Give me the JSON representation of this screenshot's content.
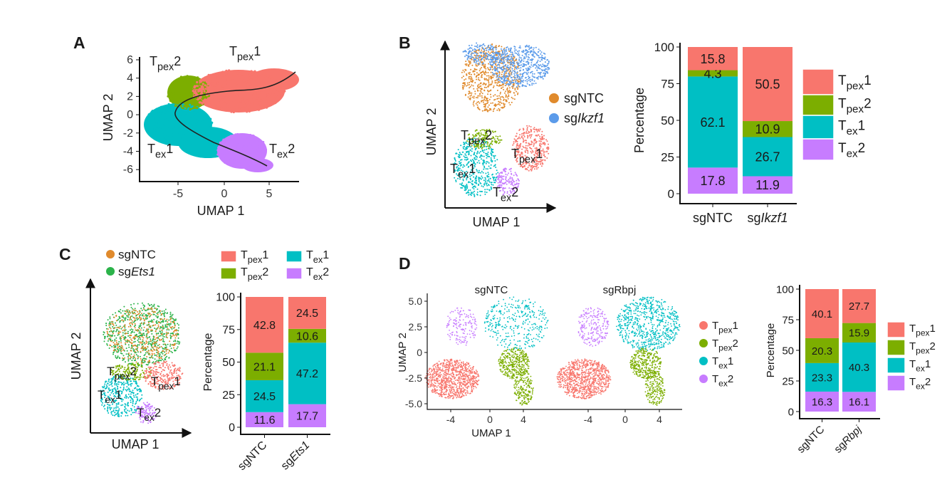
{
  "colors": {
    "tpex1": "#F8766D",
    "tpex2": "#7CAE00",
    "tex1": "#00BFC4",
    "tex2": "#C77CFF",
    "sgNTC": "#E08A2C",
    "sgIkzf1": "#5B9BEA",
    "sgEts1": "#2BB34A"
  },
  "clusters": {
    "tpex1": {
      "base": "T",
      "sub": "pex",
      "suffix": "1"
    },
    "tpex2": {
      "base": "T",
      "sub": "pex",
      "suffix": "2"
    },
    "tex1": {
      "base": "T",
      "sub": "ex",
      "suffix": "1"
    },
    "tex2": {
      "base": "T",
      "sub": "ex",
      "suffix": "2"
    }
  },
  "panels": {
    "A": {
      "letter": "A",
      "xlabel": "UMAP 1",
      "ylabel": "UMAP 2",
      "xticks": [
        "-5",
        "0",
        "5"
      ],
      "yticks": [
        "6",
        "4",
        "2",
        "0",
        "-2",
        "-4",
        "-6"
      ]
    },
    "B": {
      "letter": "B",
      "xlabel": "UMAP 1",
      "ylabel": "UMAP 2",
      "legend": [
        {
          "prefix": "sg",
          "name": "NTC",
          "italic": false
        },
        {
          "prefix": "sg",
          "name": "Ikzf1",
          "italic": true
        }
      ]
    },
    "C": {
      "letter": "C",
      "xlabel": "UMAP 1",
      "ylabel": "UMAP 2",
      "legend": [
        {
          "prefix": "sg",
          "name": "NTC",
          "italic": false
        },
        {
          "prefix": "sg",
          "name": "Ets1",
          "italic": true
        }
      ]
    },
    "D": {
      "letter": "D",
      "xlabel": "UMAP 1",
      "ylabel": "UMAP 2",
      "titles": [
        "sgNTC",
        "sgRbpj"
      ],
      "xticks": [
        "-4",
        "0",
        "4"
      ],
      "yticks": [
        "5.0",
        "2.5",
        "0",
        "-2.5",
        "-5.0"
      ]
    }
  },
  "chart_data": [
    {
      "panel": "B",
      "type": "bar",
      "stacked": true,
      "ylabel": "Percentage",
      "ylim": [
        0,
        100
      ],
      "yticks": [
        "0",
        "25",
        "50",
        "75",
        "100"
      ],
      "categories": [
        {
          "prefix": "sg",
          "name": "NTC",
          "italic": false
        },
        {
          "prefix": "sg",
          "name": "Ikzf1",
          "italic": true
        }
      ],
      "series": [
        {
          "key": "tex2",
          "values": [
            17.8,
            11.9
          ]
        },
        {
          "key": "tex1",
          "values": [
            62.1,
            26.7
          ]
        },
        {
          "key": "tpex2",
          "values": [
            4.3,
            10.9
          ]
        },
        {
          "key": "tpex1",
          "values": [
            15.8,
            50.5
          ]
        }
      ],
      "legend": [
        "tpex1",
        "tpex2",
        "tex1",
        "tex2"
      ]
    },
    {
      "panel": "C",
      "type": "bar",
      "stacked": true,
      "ylabel": "Percentage",
      "ylim": [
        0,
        100
      ],
      "yticks": [
        "0",
        "25",
        "50",
        "75",
        "100"
      ],
      "categories": [
        {
          "prefix": "sg",
          "name": "NTC",
          "italic": false
        },
        {
          "prefix": "sg",
          "name": "Ets1",
          "italic": true
        }
      ],
      "series": [
        {
          "key": "tex2",
          "values": [
            11.6,
            17.7
          ]
        },
        {
          "key": "tex1",
          "values": [
            24.5,
            47.2
          ]
        },
        {
          "key": "tpex2",
          "values": [
            21.1,
            10.6
          ]
        },
        {
          "key": "tpex1",
          "values": [
            42.8,
            24.5
          ]
        }
      ],
      "legend": [
        "tpex1",
        "tex1",
        "tpex2",
        "tex2"
      ]
    },
    {
      "panel": "D",
      "type": "bar",
      "stacked": true,
      "ylabel": "Percentage",
      "ylim": [
        0,
        100
      ],
      "yticks": [
        "0",
        "25",
        "50",
        "75",
        "100"
      ],
      "categories": [
        {
          "prefix": "sg",
          "name": "NTC",
          "italic": false
        },
        {
          "prefix": "sg",
          "name": "Rbpj",
          "italic": true
        }
      ],
      "series": [
        {
          "key": "tex2",
          "values": [
            16.3,
            16.1
          ]
        },
        {
          "key": "tex1",
          "values": [
            23.3,
            40.3
          ]
        },
        {
          "key": "tpex2",
          "values": [
            20.3,
            15.9
          ]
        },
        {
          "key": "tpex1",
          "values": [
            40.1,
            27.7
          ]
        }
      ],
      "legend": [
        "tpex1",
        "tpex2",
        "tex1",
        "tex2"
      ]
    }
  ]
}
